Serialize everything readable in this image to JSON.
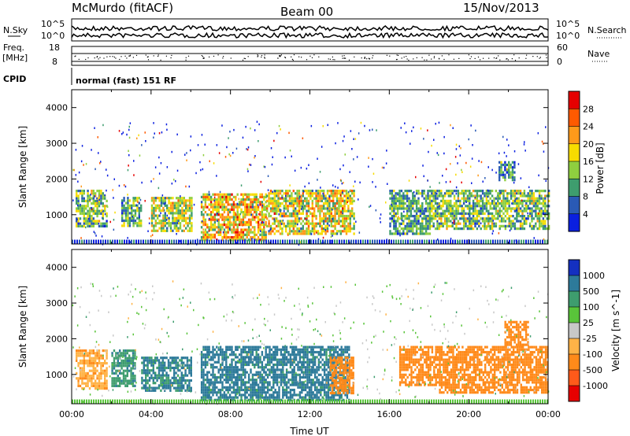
{
  "header": {
    "station": "McMurdo (fitACF)",
    "beam": "Beam 00",
    "date": "15/Nov/2013"
  },
  "top_panels": {
    "nsky_label": "N.Sky",
    "nsearch_label": "N.Search",
    "noise_ticks_left": [
      "10^5",
      "10^0"
    ],
    "noise_ticks_right": [
      "10^5",
      "10^0"
    ],
    "freq_label": "Freq.",
    "freq_unit": "[MHz]",
    "freq_ticks": [
      "18",
      "8"
    ],
    "nave_label": "Nave",
    "nave_ticks": [
      "60",
      "0"
    ],
    "cpid_label": "CPID",
    "cpid_text": "normal (fast) 151 RF"
  },
  "colorbar_power": {
    "label": "Power [dB]",
    "ticks": [
      "28",
      "24",
      "20",
      "16",
      "12",
      "8",
      "4"
    ],
    "colors": [
      "#e60000",
      "#ff5a00",
      "#ff9a1a",
      "#f7dc00",
      "#8fcf3f",
      "#3e9d6e",
      "#2a5ab5",
      "#0a1fe0"
    ]
  },
  "colorbar_velocity": {
    "label": "Velocity [m s^-1]",
    "ticks": [
      "1000",
      "500",
      "100",
      "25",
      "-25",
      "-100",
      "-500",
      "-1000"
    ],
    "colors": [
      "#1430c0",
      "#2d7a9a",
      "#3e9d6e",
      "#59c43a",
      "#c8c8c8",
      "#ffb347",
      "#ff8a1a",
      "#ff5a1a",
      "#e60000"
    ]
  },
  "chart_data": [
    {
      "type": "heatmap",
      "title": "Power",
      "xlabel": "",
      "ylabel": "Slant Range [km]",
      "xlim": [
        "00:00",
        "24:00"
      ],
      "ylim": [
        180,
        4500
      ],
      "y_ticks": [
        "4000",
        "3000",
        "2000",
        "1000"
      ],
      "clim": [
        0,
        30
      ],
      "echo_regions": [
        {
          "t0": 0.2,
          "t1": 1.8,
          "r0": 650,
          "r1": 1700,
          "value": 12
        },
        {
          "t0": 2.5,
          "t1": 3.5,
          "r0": 700,
          "r1": 1500,
          "value": 10
        },
        {
          "t0": 4.0,
          "t1": 6.0,
          "r0": 550,
          "r1": 1500,
          "value": 14
        },
        {
          "t0": 6.5,
          "t1": 9.8,
          "r0": 300,
          "r1": 1600,
          "value": 18
        },
        {
          "t0": 9.8,
          "t1": 14.2,
          "r0": 500,
          "r1": 1700,
          "value": 16
        },
        {
          "t0": 16.0,
          "t1": 18.0,
          "r0": 500,
          "r1": 1700,
          "value": 10
        },
        {
          "t0": 18.0,
          "t1": 24.0,
          "r0": 600,
          "r1": 1700,
          "value": 12
        },
        {
          "t0": 21.5,
          "t1": 22.3,
          "r0": 2000,
          "r1": 2500,
          "value": 8
        }
      ]
    },
    {
      "type": "heatmap",
      "title": "Velocity",
      "xlabel": "Time UT",
      "ylabel": "Slant Range [km]",
      "xlim": [
        "00:00",
        "24:00"
      ],
      "ylim": [
        180,
        4500
      ],
      "x_ticks": [
        "00:00",
        "04:00",
        "08:00",
        "12:00",
        "16:00",
        "20:00",
        "00:00"
      ],
      "y_ticks": [
        "4000",
        "3000",
        "2000",
        "1000"
      ],
      "clim": [
        -1000,
        1000
      ],
      "echo_regions": [
        {
          "t0": 0.2,
          "t1": 1.8,
          "r0": 600,
          "r1": 1700,
          "value": -80
        },
        {
          "t0": 2.0,
          "t1": 3.2,
          "r0": 700,
          "r1": 1700,
          "value": 80
        },
        {
          "t0": 3.5,
          "t1": 6.0,
          "r0": 550,
          "r1": 1500,
          "value": 120
        },
        {
          "t0": 6.5,
          "t1": 14.0,
          "r0": 300,
          "r1": 1800,
          "value": 150
        },
        {
          "t0": 13.0,
          "t1": 14.2,
          "r0": 500,
          "r1": 1500,
          "value": -200
        },
        {
          "t0": 16.5,
          "t1": 18.5,
          "r0": 700,
          "r1": 1800,
          "value": -300
        },
        {
          "t0": 18.5,
          "t1": 24.0,
          "r0": 500,
          "r1": 1800,
          "value": -250
        },
        {
          "t0": 21.8,
          "t1": 23.0,
          "r0": 1800,
          "r1": 2500,
          "value": -300
        }
      ]
    }
  ],
  "colors": {
    "axis": "#000000",
    "background": "#ffffff"
  }
}
